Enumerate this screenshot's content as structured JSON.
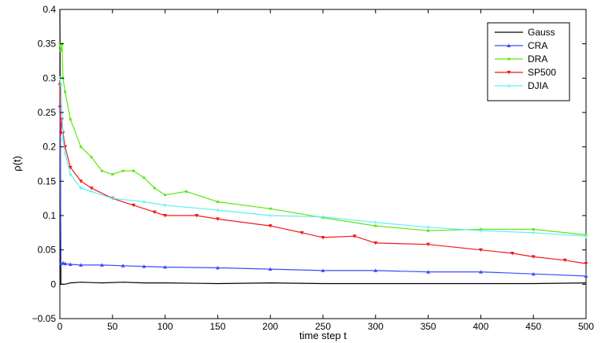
{
  "chart_data": {
    "type": "line",
    "xlabel": "time step t",
    "ylabel": "ρ(t)",
    "xlim": [
      0,
      500
    ],
    "ylim": [
      -0.05,
      0.4
    ],
    "xticks": [
      "0",
      "50",
      "100",
      "150",
      "200",
      "250",
      "300",
      "350",
      "400",
      "450",
      "500"
    ],
    "yticks": [
      "−0.05",
      "0",
      "0.05",
      "0.1",
      "0.15",
      "0.2",
      "0.25",
      "0.3",
      "0.35",
      "0.4"
    ],
    "legend_position": "top-right",
    "grid": false,
    "series": [
      {
        "name": "Gauss",
        "color": "#000000",
        "marker": "none",
        "x": [
          0,
          1,
          2,
          3,
          5,
          10,
          20,
          40,
          60,
          80,
          100,
          150,
          200,
          250,
          300,
          350,
          400,
          450,
          500
        ],
        "y": [
          0.4,
          0.0,
          0.0,
          0.0,
          0.0,
          0.002,
          0.003,
          0.002,
          0.003,
          0.002,
          0.002,
          0.001,
          0.002,
          0.001,
          0.001,
          0.001,
          0.001,
          0.001,
          0.002
        ]
      },
      {
        "name": "CRA",
        "color": "#3a4dfa",
        "marker": "triangle-up",
        "x": [
          0,
          1,
          3,
          5,
          10,
          20,
          40,
          60,
          80,
          100,
          150,
          200,
          250,
          300,
          350,
          400,
          450,
          500
        ],
        "y": [
          0.26,
          0.03,
          0.031,
          0.03,
          0.029,
          0.028,
          0.028,
          0.027,
          0.026,
          0.025,
          0.024,
          0.022,
          0.02,
          0.02,
          0.018,
          0.018,
          0.015,
          0.012
        ]
      },
      {
        "name": "DRA",
        "color": "#5de516",
        "marker": "square",
        "x": [
          0,
          1,
          2,
          3,
          5,
          10,
          20,
          30,
          40,
          50,
          60,
          70,
          80,
          90,
          100,
          120,
          150,
          200,
          250,
          300,
          350,
          400,
          450,
          500
        ],
        "y": [
          0.35,
          0.34,
          0.35,
          0.3,
          0.28,
          0.24,
          0.2,
          0.185,
          0.165,
          0.16,
          0.165,
          0.165,
          0.155,
          0.14,
          0.13,
          0.135,
          0.12,
          0.11,
          0.097,
          0.085,
          0.078,
          0.08,
          0.08,
          0.072
        ]
      },
      {
        "name": "SP500",
        "color": "#f21818",
        "marker": "triangle-down",
        "x": [
          0,
          1,
          2,
          3,
          5,
          10,
          20,
          30,
          50,
          70,
          90,
          100,
          130,
          150,
          200,
          230,
          250,
          280,
          300,
          350,
          400,
          430,
          450,
          480,
          500
        ],
        "y": [
          0.29,
          0.22,
          0.24,
          0.22,
          0.2,
          0.17,
          0.15,
          0.14,
          0.125,
          0.115,
          0.105,
          0.1,
          0.1,
          0.095,
          0.085,
          0.075,
          0.068,
          0.07,
          0.06,
          0.058,
          0.05,
          0.045,
          0.04,
          0.035,
          0.03
        ]
      },
      {
        "name": "DJIA",
        "color": "#5ef0f0",
        "marker": "plus",
        "x": [
          0,
          1,
          2,
          3,
          5,
          10,
          20,
          30,
          50,
          80,
          100,
          150,
          200,
          250,
          300,
          350,
          400,
          450,
          500
        ],
        "y": [
          0.3,
          0.29,
          0.25,
          0.21,
          0.19,
          0.16,
          0.14,
          0.135,
          0.125,
          0.12,
          0.115,
          0.108,
          0.1,
          0.098,
          0.09,
          0.083,
          0.078,
          0.075,
          0.07
        ]
      }
    ]
  }
}
